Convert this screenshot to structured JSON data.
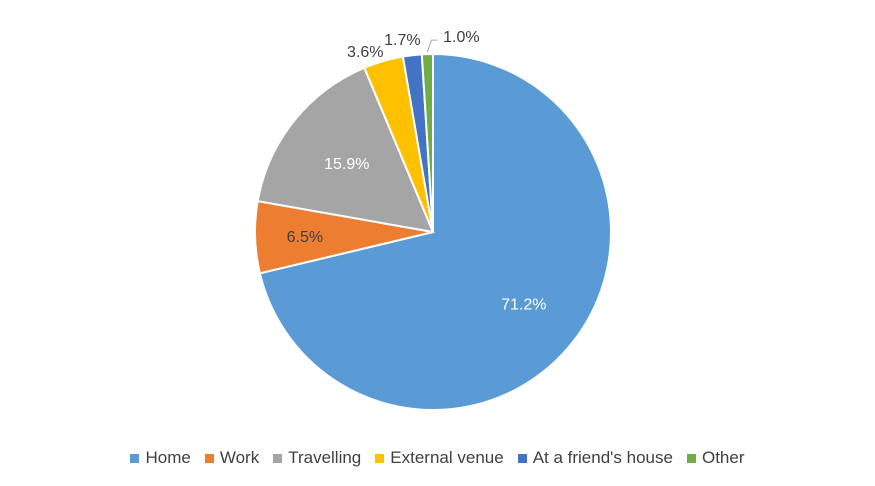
{
  "chart_data": {
    "type": "pie",
    "title": "",
    "legend_position": "bottom",
    "slices": [
      {
        "name": "Home",
        "value": 71.2,
        "label": "71.2%",
        "color": "#5B9BD5"
      },
      {
        "name": "Work",
        "value": 6.5,
        "label": "6.5%",
        "color": "#ED7D31"
      },
      {
        "name": "Travelling",
        "value": 15.9,
        "label": "15.9%",
        "color": "#A5A5A5"
      },
      {
        "name": "External venue",
        "value": 3.6,
        "label": "3.6%",
        "color": "#FFC000"
      },
      {
        "name": "At a friend's house",
        "value": 1.7,
        "label": "1.7%",
        "color": "#4472C4"
      },
      {
        "name": "Other",
        "value": 1.0,
        "label": "1.0%",
        "color": "#70AD47"
      }
    ]
  }
}
